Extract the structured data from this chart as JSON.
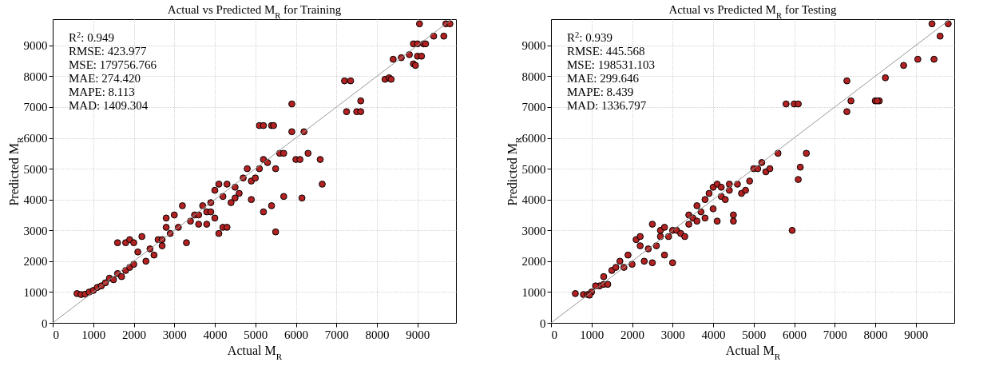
{
  "chart_data": [
    {
      "type": "scatter",
      "title": "Actual vs Predicted M$_{R}$ for Training",
      "xlabel": "Actual M$_{R}$",
      "ylabel": "Predicted M$_{R}$",
      "xlim": [
        0,
        9950
      ],
      "ylim": [
        0,
        9850
      ],
      "xticks": [
        0,
        1000,
        2000,
        3000,
        4000,
        5000,
        6000,
        7000,
        8000,
        9000
      ],
      "yticks": [
        0,
        1000,
        2000,
        3000,
        4000,
        5000,
        6000,
        7000,
        8000,
        9000
      ],
      "grid": true,
      "annotations": [
        "R$^{2}$: 0.949",
        "RMSE: 423.977",
        "MSE: 179756.766",
        "MAE: 274.420",
        "MAPE: 8.113",
        "MAD: 1409.304"
      ],
      "series": [
        {
          "marker": "circle",
          "color": "#b22222",
          "x": [
            600,
            700,
            800,
            900,
            1000,
            1100,
            1200,
            1300,
            1400,
            1500,
            1600,
            1700,
            1800,
            1900,
            2000,
            1600,
            1800,
            1900,
            2000,
            2100,
            2200,
            2300,
            2400,
            2500,
            2600,
            2700,
            2800,
            2900,
            3000,
            3100,
            3200,
            3300,
            3400,
            3500,
            3600,
            3700,
            3800,
            3900,
            4000,
            4100,
            4200,
            4300,
            4400,
            4500,
            4600,
            4700,
            4800,
            4900,
            5000,
            5100,
            5200,
            4200,
            4100,
            4000,
            4300,
            4900,
            5200,
            5400,
            5500,
            5700,
            5500,
            5600,
            5700,
            5300,
            5100,
            5200,
            5400,
            5450,
            5900,
            5900,
            6000,
            6200,
            6300,
            6100,
            6150,
            6600,
            6650,
            7200,
            7350,
            7250,
            7500,
            7600,
            7600,
            8200,
            8300,
            8350,
            8400,
            8600,
            8800,
            8900,
            8950,
            9000,
            9100,
            8900,
            9000,
            9150,
            9200,
            9050,
            9400,
            9650,
            9700,
            9800,
            4500,
            3900,
            3800,
            3600,
            2800,
            2700
          ],
          "values": [
            950,
            920,
            930,
            1000,
            1050,
            1150,
            1200,
            1300,
            1450,
            1400,
            1600,
            1500,
            1700,
            1800,
            1900,
            2600,
            2600,
            2700,
            2600,
            2300,
            2800,
            2000,
            2400,
            2200,
            2700,
            2500,
            3400,
            2900,
            3500,
            3100,
            3800,
            2600,
            3300,
            3500,
            3200,
            3800,
            3600,
            3900,
            4300,
            4500,
            4100,
            4500,
            3900,
            4400,
            4200,
            4700,
            5000,
            4600,
            4700,
            5000,
            5300,
            3100,
            2900,
            3400,
            3100,
            4000,
            3600,
            3800,
            2950,
            4100,
            5000,
            5500,
            5500,
            5200,
            6400,
            6400,
            6400,
            6400,
            7100,
            6200,
            5300,
            6200,
            5500,
            5300,
            4050,
            5300,
            4500,
            7850,
            7850,
            6850,
            6850,
            7200,
            6850,
            7900,
            7950,
            7900,
            8550,
            8600,
            8700,
            8400,
            8350,
            8650,
            8650,
            9050,
            9050,
            9050,
            9050,
            9700,
            9300,
            9300,
            9700,
            9700,
            4050,
            3600,
            3200,
            3500,
            3100,
            2700
          ]
        },
        {
          "type": "line",
          "color": "#999999",
          "line_style": "solid",
          "x": [
            0,
            9850
          ],
          "values": [
            0,
            9850
          ]
        }
      ]
    },
    {
      "type": "scatter",
      "title": "Actual vs Predicted M$_{R}$ for Testing",
      "xlabel": "Actual M$_{R}$",
      "ylabel": "Predicted M$_{R}$",
      "xlim": [
        0,
        9950
      ],
      "ylim": [
        0,
        9850
      ],
      "xticks": [
        0,
        1000,
        2000,
        3000,
        4000,
        5000,
        6000,
        7000,
        8000,
        9000
      ],
      "yticks": [
        0,
        1000,
        2000,
        3000,
        4000,
        5000,
        6000,
        7000,
        8000,
        9000
      ],
      "grid": true,
      "annotations": [
        "R$^{2}$: 0.939",
        "RMSE: 445.568",
        "MSE: 198531.103",
        "MAE: 299.646",
        "MAPE: 8.439",
        "MAD: 1336.797"
      ],
      "series": [
        {
          "marker": "circle",
          "color": "#b22222",
          "x": [
            600,
            800,
            900,
            1000,
            950,
            1200,
            1300,
            1400,
            1300,
            1500,
            1600,
            1700,
            1800,
            1900,
            2000,
            2100,
            2200,
            2300,
            2400,
            2500,
            2600,
            2700,
            2700,
            2800,
            2900,
            3000,
            3000,
            2500,
            2800,
            3100,
            3200,
            3300,
            3400,
            3500,
            3600,
            3700,
            3800,
            3900,
            4000,
            4100,
            4200,
            4000,
            4100,
            4200,
            4300,
            4400,
            4500,
            4500,
            4600,
            4700,
            4900,
            5000,
            5100,
            5200,
            5300,
            5400,
            5600,
            4400,
            3600,
            3800,
            4800,
            5950,
            6100,
            6150,
            6300,
            5800,
            6000,
            6100,
            7300,
            7300,
            7400,
            8000,
            8100,
            8050,
            8250,
            8700,
            9050,
            9450,
            9400,
            9600,
            9800,
            2200,
            3400,
            1100
          ],
          "values": [
            950,
            920,
            920,
            1000,
            900,
            1200,
            1250,
            1250,
            1500,
            1700,
            1800,
            2000,
            1800,
            2200,
            1900,
            2700,
            2800,
            2000,
            2400,
            3200,
            2500,
            2800,
            3000,
            3100,
            2800,
            3000,
            1950,
            1950,
            2200,
            3000,
            2900,
            2800,
            3500,
            3400,
            3800,
            3600,
            4000,
            4200,
            4400,
            4500,
            4400,
            3700,
            3300,
            4100,
            4000,
            4300,
            3500,
            3300,
            4500,
            4200,
            4600,
            5000,
            5000,
            5200,
            4900,
            5000,
            5500,
            4500,
            3300,
            3400,
            4300,
            3000,
            4650,
            5050,
            5500,
            7100,
            7100,
            7100,
            7850,
            6850,
            7200,
            7200,
            7200,
            7200,
            7950,
            8350,
            8550,
            8550,
            9700,
            9300,
            9700,
            2500,
            3200,
            1200
          ]
        },
        {
          "type": "line",
          "color": "#999999",
          "line_style": "solid",
          "x": [
            0,
            9850
          ],
          "values": [
            0,
            9850
          ]
        }
      ]
    }
  ]
}
